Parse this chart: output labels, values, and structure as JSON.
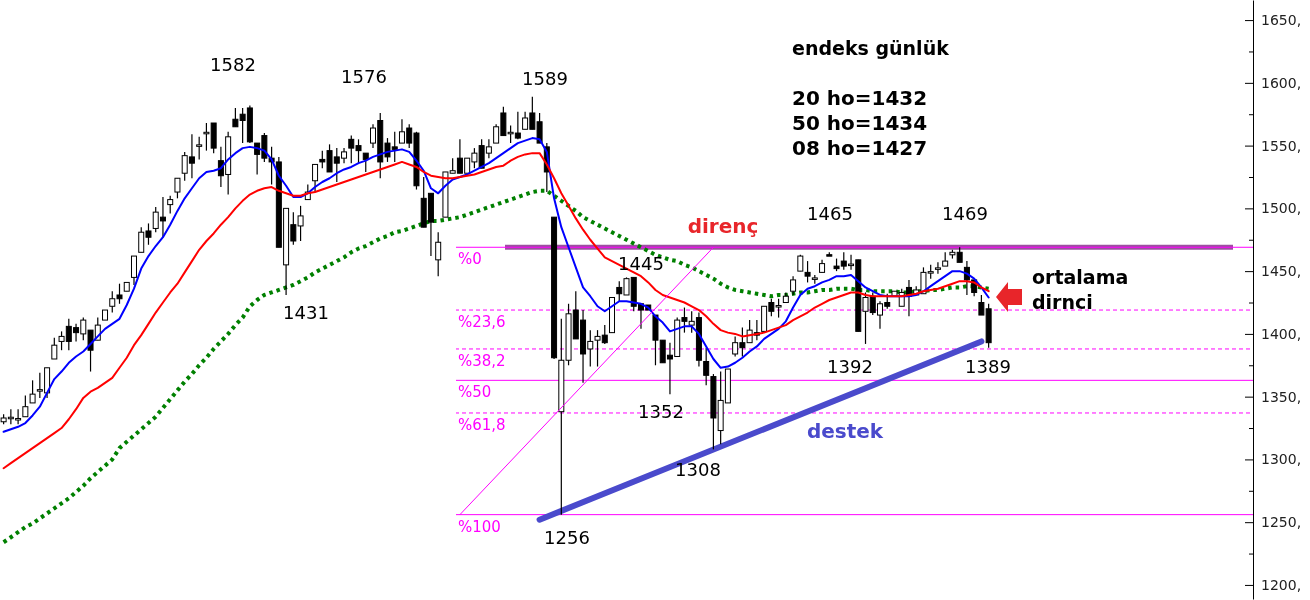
{
  "chart_data": {
    "type": "candlestick",
    "categories": [
      null,
      null,
      null,
      null,
      null,
      null,
      null,
      null,
      null,
      null,
      null,
      null,
      null,
      null,
      null,
      null,
      null,
      null,
      null,
      null,
      null,
      null,
      null,
      null,
      null,
      null,
      null,
      null,
      null,
      null,
      null,
      null,
      null,
      null,
      null,
      null,
      null,
      null,
      null,
      null,
      null,
      null,
      null,
      null,
      null,
      null,
      null,
      null,
      null,
      null,
      null,
      null,
      null,
      null,
      null,
      null,
      null,
      null,
      null,
      null,
      null,
      null,
      null,
      null,
      null,
      null,
      null,
      null,
      null,
      null,
      null,
      null,
      null,
      null,
      null,
      null,
      null,
      null,
      null,
      null,
      null,
      null,
      null,
      null,
      null,
      null,
      null,
      null,
      null,
      null,
      null,
      null,
      null,
      null,
      null,
      null,
      null,
      null,
      null,
      null,
      null,
      null,
      null,
      null,
      null,
      null,
      null,
      null,
      null,
      null,
      null,
      null,
      null,
      null,
      null,
      null,
      null,
      null,
      null,
      null,
      null,
      null,
      null,
      null,
      null,
      null,
      null,
      null,
      null,
      null,
      null,
      null,
      null,
      null,
      null,
      null,
      null,
      null,
      null,
      null,
      null,
      null,
      null,
      null,
      null,
      null,
      null,
      null,
      null,
      null,
      null,
      null,
      null,
      null,
      null,
      null,
      null,
      null,
      null,
      null,
      null,
      null,
      null,
      null,
      null,
      null,
      null,
      null,
      null,
      null,
      null,
      null,
      null
    ],
    "ohlc": [
      [
        1330,
        1336,
        1328,
        1333
      ],
      [
        1333,
        1340,
        1328,
        1333
      ],
      [
        1332,
        1340,
        1328,
        1332
      ],
      [
        1334,
        1351,
        1334,
        1342
      ],
      [
        1345,
        1363,
        1345,
        1352
      ],
      [
        1355,
        1369,
        1349,
        1355
      ],
      [
        1353,
        1373,
        1349,
        1373
      ],
      [
        1380,
        1397,
        1380,
        1391
      ],
      [
        1394,
        1402,
        1387,
        1398
      ],
      [
        1406,
        1412,
        1387,
        1394
      ],
      [
        1405,
        1408,
        1394,
        1401
      ],
      [
        1400,
        1413,
        1395,
        1411
      ],
      [
        1403,
        1403,
        1370,
        1387
      ],
      [
        1395,
        1413,
        1395,
        1407
      ],
      [
        1411,
        1419,
        1411,
        1419
      ],
      [
        1422,
        1434,
        1417,
        1428
      ],
      [
        1431,
        1440,
        1424,
        1428
      ],
      [
        1434,
        1441,
        1434,
        1441
      ],
      [
        1445,
        1462,
        1439,
        1462
      ],
      [
        1465,
        1485,
        1465,
        1481
      ],
      [
        1482,
        1488,
        1471,
        1477
      ],
      [
        1484,
        1501,
        1481,
        1497
      ],
      [
        1493,
        1509,
        1477,
        1490
      ],
      [
        1503,
        1510,
        1496,
        1507
      ],
      [
        1513,
        1524,
        1508,
        1524
      ],
      [
        1528,
        1545,
        1522,
        1542
      ],
      [
        1541,
        1559,
        1524,
        1536
      ],
      [
        1550,
        1557,
        1539,
        1550
      ],
      [
        1560,
        1568,
        1546,
        1560
      ],
      [
        1568,
        1568,
        1544,
        1548
      ],
      [
        1538,
        1549,
        1517,
        1526
      ],
      [
        1527,
        1561,
        1511,
        1557
      ],
      [
        1571,
        1580,
        1565,
        1565
      ],
      [
        1575,
        1580,
        1552,
        1570
      ],
      [
        1580,
        1582,
        1552,
        1553
      ],
      [
        1552,
        1552,
        1527,
        1543
      ],
      [
        1558,
        1560,
        1537,
        1540
      ],
      [
        1540,
        1549,
        1519,
        1537
      ],
      [
        1537,
        1541,
        1469,
        1469
      ],
      [
        1455,
        1500,
        1431,
        1500
      ],
      [
        1487,
        1497,
        1471,
        1474
      ],
      [
        1486,
        1502,
        1474,
        1494
      ],
      [
        1507,
        1519,
        1507,
        1513
      ],
      [
        1522,
        1535,
        1513,
        1535
      ],
      [
        1539,
        1546,
        1532,
        1537
      ],
      [
        1546,
        1551,
        1529,
        1529
      ],
      [
        1541,
        1548,
        1521,
        1536
      ],
      [
        1540,
        1548,
        1536,
        1545
      ],
      [
        1555,
        1558,
        1536,
        1548
      ],
      [
        1550,
        1555,
        1536,
        1546
      ],
      [
        1544,
        1544,
        1529,
        1539
      ],
      [
        1552,
        1567,
        1548,
        1564
      ],
      [
        1570,
        1576,
        1524,
        1537
      ],
      [
        1552,
        1556,
        1537,
        1541
      ],
      [
        1549,
        1561,
        1537,
        1547
      ],
      [
        1552,
        1571,
        1552,
        1561
      ],
      [
        1564,
        1567,
        1548,
        1552
      ],
      [
        1560,
        1561,
        1515,
        1518
      ],
      [
        1508,
        1525,
        1485,
        1485
      ],
      [
        1512,
        1512,
        1462,
        1489
      ],
      [
        1459,
        1481,
        1446,
        1473
      ],
      [
        1493,
        1529,
        1493,
        1529
      ],
      [
        1528,
        1540,
        1528,
        1530
      ],
      [
        1540,
        1555,
        1528,
        1528
      ],
      [
        1528,
        1540,
        1528,
        1540
      ],
      [
        1537,
        1548,
        1532,
        1544
      ],
      [
        1550,
        1555,
        1532,
        1532
      ],
      [
        1544,
        1555,
        1540,
        1549
      ],
      [
        1552,
        1567,
        1552,
        1565
      ],
      [
        1576,
        1581,
        1558,
        1558
      ],
      [
        1560,
        1566,
        1552,
        1560
      ],
      [
        1560,
        1577,
        1555,
        1556
      ],
      [
        1563,
        1577,
        1563,
        1572
      ],
      [
        1576,
        1589,
        1563,
        1563
      ],
      [
        1569,
        1576,
        1552,
        1552
      ],
      [
        1549,
        1552,
        1513,
        1529
      ],
      [
        1493,
        1493,
        1380,
        1381
      ],
      [
        1338,
        1412,
        1256,
        1379
      ],
      [
        1379,
        1424,
        1375,
        1416
      ],
      [
        1419,
        1434,
        1396,
        1396
      ],
      [
        1411,
        1419,
        1361,
        1384
      ],
      [
        1388,
        1403,
        1374,
        1394
      ],
      [
        1395,
        1403,
        1374,
        1398
      ],
      [
        1399,
        1407,
        1392,
        1393
      ],
      [
        1401,
        1429,
        1401,
        1429
      ],
      [
        1437,
        1442,
        1426,
        1432
      ],
      [
        1431,
        1445,
        1431,
        1444
      ],
      [
        1445,
        1445,
        1418,
        1422
      ],
      [
        1424,
        1424,
        1404,
        1419
      ],
      [
        1423,
        1423,
        1419,
        1419
      ],
      [
        1415,
        1415,
        1375,
        1395
      ],
      [
        1395,
        1395,
        1377,
        1377
      ],
      [
        1383,
        1393,
        1352,
        1380
      ],
      [
        1382,
        1413,
        1382,
        1411
      ],
      [
        1413,
        1421,
        1401,
        1410
      ],
      [
        1407,
        1418,
        1401,
        1410
      ],
      [
        1413,
        1417,
        1374,
        1379
      ],
      [
        1378,
        1389,
        1359,
        1367
      ],
      [
        1366,
        1368,
        1308,
        1333
      ],
      [
        1323,
        1370,
        1312,
        1347
      ],
      [
        1345,
        1372,
        1345,
        1372
      ],
      [
        1384,
        1398,
        1382,
        1393
      ],
      [
        1393,
        1405,
        1382,
        1389
      ],
      [
        1393,
        1411,
        1393,
        1403
      ],
      [
        1401,
        1411,
        1395,
        1399
      ],
      [
        1402,
        1422,
        1402,
        1422
      ],
      [
        1425,
        1428,
        1414,
        1418
      ],
      [
        1422,
        1428,
        1413,
        1422
      ],
      [
        1425,
        1433,
        1425,
        1430
      ],
      [
        1434,
        1446,
        1431,
        1443
      ],
      [
        1450,
        1463,
        1450,
        1462
      ],
      [
        1449,
        1458,
        1441,
        1446
      ],
      [
        1444,
        1447,
        1440,
        1444
      ],
      [
        1449,
        1459,
        1449,
        1456
      ],
      [
        1463,
        1465,
        1462,
        1462
      ],
      [
        1454,
        1460,
        1450,
        1452
      ],
      [
        1458,
        1465,
        1451,
        1454
      ],
      [
        1455,
        1463,
        1451,
        1455
      ],
      [
        1459,
        1459,
        1402,
        1402
      ],
      [
        1418,
        1433,
        1392,
        1429
      ],
      [
        1430,
        1433,
        1415,
        1417
      ],
      [
        1415,
        1426,
        1404,
        1424
      ],
      [
        1425,
        1432,
        1420,
        1422
      ],
      [
        1430,
        1434,
        1430,
        1434
      ],
      [
        1422,
        1436,
        1422,
        1433
      ],
      [
        1437,
        1443,
        1414,
        1430
      ],
      [
        1431,
        1438,
        1431,
        1435
      ],
      [
        1432,
        1453,
        1432,
        1449
      ],
      [
        1449,
        1455,
        1444,
        1449
      ],
      [
        1452,
        1457,
        1448,
        1452
      ],
      [
        1454,
        1465,
        1454,
        1458
      ],
      [
        1463,
        1467,
        1460,
        1465
      ],
      [
        1465,
        1469,
        1457,
        1457
      ],
      [
        1453,
        1458,
        1431,
        1443
      ],
      [
        1443,
        1443,
        1430,
        1433
      ],
      [
        1425,
        1431,
        1415,
        1415
      ],
      [
        1420,
        1424,
        1389,
        1393
      ],
      null,
      null,
      null,
      null,
      null,
      null,
      null,
      null,
      null,
      null,
      null,
      null,
      null,
      null,
      null,
      null,
      null,
      null,
      null,
      null,
      null,
      null,
      null,
      null,
      null,
      null,
      null,
      null,
      null,
      null,
      null,
      null,
      null,
      null,
      null,
      null
    ],
    "series": [
      {
        "type": "line",
        "color": "#0000ff",
        "values": [
          1322,
          1324,
          1326,
          1329,
          1335,
          1342,
          1353,
          1364,
          1370,
          1377,
          1382,
          1386,
          1392,
          1398,
          1404,
          1408,
          1412,
          1423,
          1436,
          1452,
          1462,
          1470,
          1477,
          1487,
          1498,
          1508,
          1516,
          1524,
          1529,
          1530,
          1532,
          1539,
          1544,
          1548,
          1549,
          1548,
          1546,
          1539,
          1526,
          1518,
          1509,
          1509,
          1512,
          1517,
          1521,
          1524,
          1528,
          1531,
          1533,
          1536,
          1538,
          1541,
          1543,
          1545,
          1546,
          1547,
          1545,
          1538,
          1530,
          1516,
          1512,
          1518,
          1523,
          1525,
          1527,
          1530,
          1533,
          1536,
          1540,
          1544,
          1548,
          1552,
          1554,
          1556,
          1555,
          1545,
          1508,
          1485,
          1469,
          1453,
          1437,
          1430,
          1422,
          1418,
          1422,
          1426,
          1426,
          1425,
          1424,
          1421,
          1414,
          1409,
          1402,
          1404,
          1406,
          1406,
          1400,
          1390,
          1380,
          1373,
          1374,
          1377,
          1381,
          1386,
          1390,
          1396,
          1400,
          1404,
          1410,
          1421,
          1431,
          1436,
          1438,
          1441,
          1443,
          1446,
          1446,
          1447,
          1442,
          1437,
          1434,
          1431,
          1430,
          1430,
          1430,
          1430,
          1431,
          1434,
          1438,
          1442,
          1446,
          1450,
          1450,
          1448,
          1444,
          1437,
          1429,
          null,
          null,
          null,
          null,
          null,
          null,
          null,
          null,
          null,
          null,
          null,
          null,
          null,
          null,
          null,
          null,
          null,
          null,
          null,
          null,
          null,
          null,
          null,
          null,
          null,
          null,
          null,
          null,
          null,
          null,
          null,
          null,
          null,
          null,
          null,
          null
        ]
      },
      {
        "type": "line",
        "color": "#ff0000",
        "values": [
          1293,
          1297,
          1301,
          1305,
          1309,
          1313,
          1317,
          1321,
          1325,
          1332,
          1340,
          1349,
          1354,
          1357,
          1361,
          1365,
          1373,
          1381,
          1391,
          1399,
          1408,
          1417,
          1425,
          1433,
          1440,
          1449,
          1458,
          1467,
          1474,
          1480,
          1487,
          1493,
          1500,
          1506,
          1511,
          1514,
          1516,
          1517,
          1514,
          1512,
          1510,
          1510,
          1512,
          1513,
          1515,
          1517,
          1519,
          1521,
          1523,
          1525,
          1527,
          1529,
          1531,
          1533,
          1535,
          1537,
          1535,
          1533,
          1529,
          1526,
          1525,
          1524,
          1524,
          1525,
          1526,
          1527,
          1529,
          1531,
          1533,
          1534,
          1538,
          1541,
          1543,
          1544,
          1544,
          1535,
          1524,
          1512,
          1502,
          1492,
          1483,
          1475,
          1468,
          1461,
          1458,
          1455,
          1452,
          1449,
          1446,
          1441,
          1435,
          1431,
          1429,
          1427,
          1425,
          1422,
          1419,
          1414,
          1408,
          1403,
          1401,
          1400,
          1398,
          1399,
          1400,
          1401,
          1403,
          1405,
          1407,
          1411,
          1414,
          1417,
          1421,
          1424,
          1427,
          1429,
          1431,
          1433,
          1433,
          1431,
          1430,
          1430,
          1430,
          1430,
          1430,
          1431,
          1432,
          1434,
          1435,
          1436,
          1438,
          1440,
          1442,
          1442,
          1441,
          1437,
          1434,
          null,
          null,
          null,
          null,
          null,
          null,
          null,
          null,
          null,
          null,
          null,
          null,
          null,
          null,
          null,
          null,
          null,
          null,
          null,
          null,
          null,
          null,
          null,
          null,
          null,
          null,
          null,
          null,
          null,
          null,
          null,
          null,
          null,
          null,
          null,
          null
        ]
      },
      {
        "type": "line",
        "color": "#008000",
        "line_style": "dotted",
        "values": [
          1234,
          1238,
          1242,
          1246,
          1249,
          1253,
          1257,
          1261,
          1265,
          1269,
          1274,
          1279,
          1285,
          1290,
          1295,
          1300,
          1309,
          1314,
          1319,
          1324,
          1329,
          1334,
          1341,
          1348,
          1355,
          1362,
          1368,
          1375,
          1381,
          1388,
          1394,
          1400,
          1407,
          1413,
          1422,
          1427,
          1431,
          1433,
          1435,
          1437,
          1439,
          1442,
          1445,
          1449,
          1452,
          1455,
          1458,
          1461,
          1465,
          1468,
          1470,
          1473,
          1476,
          1478,
          1481,
          1482,
          1484,
          1486,
          1488,
          1490,
          1490,
          1491,
          1492,
          1493,
          1495,
          1497,
          1499,
          1501,
          1503,
          1505,
          1507,
          1509,
          1511,
          1513,
          1514,
          1514,
          1510,
          1506,
          1502,
          1498,
          1493,
          1490,
          1487,
          1484,
          1481,
          1478,
          1475,
          1472,
          1469,
          1466,
          1463,
          1461,
          1459,
          1458,
          1455,
          1453,
          1450,
          1447,
          1444,
          1440,
          1437,
          1435,
          1434,
          1433,
          1432,
          1431,
          1430,
          1431,
          1431,
          1432,
          1433,
          1433,
          1434,
          1435,
          1435,
          1436,
          1436,
          1436,
          1435,
          1435,
          1434,
          1434,
          1434,
          1434,
          1433,
          1433,
          1434,
          1434,
          1435,
          1435,
          1436,
          1437,
          1437,
          1438,
          1438,
          1437,
          1436,
          null,
          null,
          null,
          null,
          null,
          null,
          null,
          null,
          null,
          null,
          null,
          null,
          null,
          null,
          null,
          null,
          null,
          null,
          null,
          null,
          null,
          null,
          null,
          null,
          null,
          null,
          null,
          null,
          null,
          null,
          null,
          null,
          null,
          null,
          null,
          null
        ]
      },
      {
        "type": "line",
        "color": "#4a4acc",
        "values": [
          null,
          null,
          null,
          null,
          null,
          null,
          null,
          null,
          null,
          null,
          null,
          null,
          null,
          null,
          null,
          null,
          null,
          null,
          null,
          null,
          null,
          null,
          null,
          null,
          null,
          null,
          null,
          null,
          null,
          null,
          null,
          null,
          null,
          null,
          null,
          null,
          null,
          null,
          null,
          null,
          null,
          null,
          null,
          null,
          null,
          null,
          null,
          null,
          null,
          null,
          null,
          null,
          null,
          null,
          null,
          null,
          null,
          null,
          null,
          null,
          null,
          null,
          null,
          null,
          null,
          null,
          null,
          null,
          null,
          null,
          null,
          null,
          null,
          null,
          1252,
          null,
          null,
          null,
          null,
          null,
          null,
          null,
          null,
          null,
          null,
          null,
          null,
          null,
          null,
          null,
          null,
          null,
          null,
          null,
          null,
          null,
          null,
          null,
          null,
          null,
          null,
          null,
          null,
          null,
          null,
          null,
          null,
          null,
          null,
          null,
          null,
          null,
          null,
          null,
          null,
          null,
          null,
          null,
          null,
          null,
          null,
          null,
          null,
          null,
          null,
          null,
          null,
          null,
          null,
          null,
          null,
          null,
          null,
          null,
          null,
          1394,
          null,
          null,
          null,
          null,
          null,
          null,
          null,
          null,
          null,
          null,
          null,
          null,
          null,
          null,
          null,
          null,
          null,
          null,
          null,
          null,
          null,
          null,
          null,
          null,
          null,
          null,
          null,
          null,
          null,
          null,
          null,
          null,
          null,
          null,
          null,
          null,
          null
        ]
      },
      {
        "type": "line",
        "color": "#ff00ff",
        "values": [
          null,
          null,
          null,
          null,
          null,
          null,
          null,
          null,
          null,
          null,
          null,
          null,
          null,
          null,
          null,
          null,
          null,
          null,
          null,
          null,
          null,
          null,
          null,
          null,
          null,
          null,
          null,
          null,
          null,
          null,
          null,
          null,
          null,
          null,
          null,
          null,
          null,
          null,
          null,
          null,
          null,
          null,
          null,
          null,
          null,
          null,
          null,
          null,
          null,
          null,
          null,
          null,
          null,
          null,
          null,
          null,
          null,
          null,
          null,
          null,
          null,
          null,
          null,
          1256,
          null,
          null,
          null,
          null,
          null,
          null,
          null,
          null,
          null,
          null,
          null,
          null,
          null,
          null,
          null,
          null,
          null,
          null,
          null,
          null,
          null,
          null,
          null,
          null,
          null,
          null,
          null,
          null,
          null,
          null,
          null,
          null,
          null,
          null,
          1469,
          null,
          null,
          null,
          null,
          null,
          null,
          null,
          null,
          null,
          null,
          null,
          null,
          null,
          null,
          null,
          null,
          null,
          null,
          null,
          null,
          null,
          null,
          null,
          null,
          null,
          null,
          null,
          null,
          null,
          null,
          null,
          null,
          null,
          null,
          null,
          null,
          null,
          null,
          null,
          null,
          null,
          null,
          null,
          null,
          null,
          null,
          null,
          null,
          null,
          null,
          null,
          null,
          null,
          null,
          null,
          null,
          null,
          null,
          null,
          null,
          null,
          null,
          null,
          null,
          null,
          null,
          null,
          null,
          null,
          null,
          null,
          null,
          null,
          null
        ]
      }
    ],
    "ref_lines": [
      {
        "axis": "y",
        "value": 1469,
        "color": "#9b4f9f",
        "line_style": "solid"
      },
      {
        "axis": "y",
        "value": 1469,
        "color": "#ff00ff",
        "line_style": "solid"
      },
      {
        "axis": "y",
        "value": 1419,
        "color": "#ff00ff",
        "line_style": "dashed"
      },
      {
        "axis": "y",
        "value": 1388,
        "color": "#ff00ff",
        "line_style": "dashed"
      },
      {
        "axis": "y",
        "value": 1363,
        "color": "#ff00ff",
        "line_style": "solid"
      },
      {
        "axis": "y",
        "value": 1337,
        "color": "#ff00ff",
        "line_style": "dashed"
      },
      {
        "axis": "y",
        "value": 1256,
        "color": "#ff00ff",
        "line_style": "solid"
      }
    ],
    "ylim": [
      1188,
      1666
    ],
    "yticks": [
      {
        "value": 1200,
        "label": "1200,"
      },
      {
        "value": 1225,
        "label": null
      },
      {
        "value": 1250,
        "label": "1250,"
      },
      {
        "value": 1275,
        "label": null
      },
      {
        "value": 1300,
        "label": "1300,"
      },
      {
        "value": 1325,
        "label": null
      },
      {
        "value": 1350,
        "label": "1350,"
      },
      {
        "value": 1375,
        "label": null
      },
      {
        "value": 1400,
        "label": "1400,"
      },
      {
        "value": 1425,
        "label": null
      },
      {
        "value": 1450,
        "label": "1450,"
      },
      {
        "value": 1475,
        "label": null
      },
      {
        "value": 1500,
        "label": "1500,"
      },
      {
        "value": 1525,
        "label": null
      },
      {
        "value": 1550,
        "label": "1550,"
      },
      {
        "value": 1575,
        "label": null
      },
      {
        "value": 1600,
        "label": "1600,"
      },
      {
        "value": 1625,
        "label": null
      },
      {
        "value": 1650,
        "label": "1650,"
      }
    ],
    "annotations": [
      "endeks günlük",
      "20 ho=1432",
      "50 ho=1434",
      "08 ho=1427",
      "1582",
      "1576",
      "1589",
      "1431",
      "1445",
      "1352",
      "1308",
      "1256",
      "1465",
      "1392",
      "1469",
      "1389",
      "direnç",
      "destek",
      "ortalama",
      "dirnci",
      {
        "text": "%0",
        "y": 1469
      },
      {
        "text": "%23,6",
        "y": 1419
      },
      {
        "text": "%38,2",
        "y": 1388
      },
      {
        "text": "%50",
        "y": 1363
      },
      {
        "text": "%61,8",
        "y": 1337
      },
      {
        "text": "%100",
        "y": 1256
      }
    ],
    "grid": false,
    "tick_labels": "y"
  }
}
